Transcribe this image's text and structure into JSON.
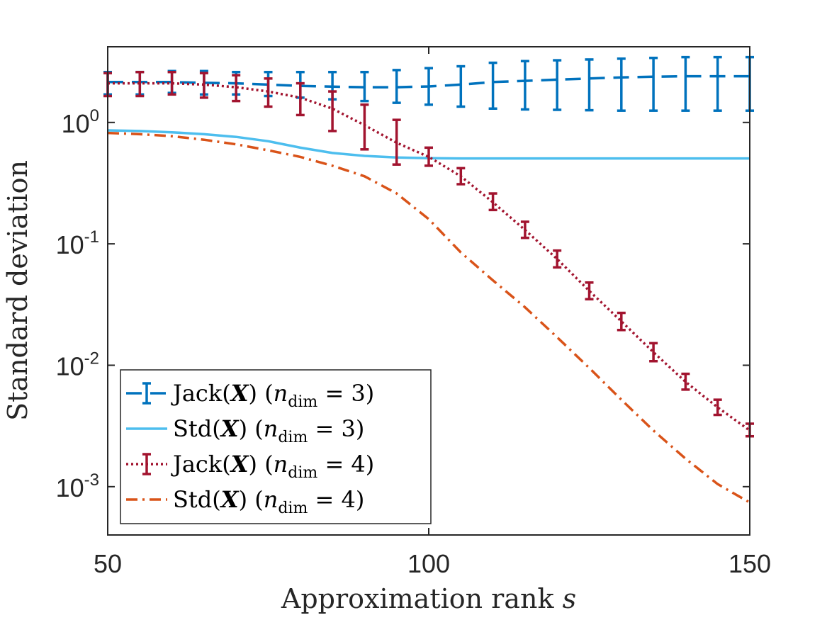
{
  "chart_data": {
    "type": "line",
    "xlabel_main": "Approximation rank ",
    "xlabel_var": "s",
    "ylabel": "Standard deviation",
    "yscale": "log",
    "xlim": [
      50,
      150
    ],
    "ylim": [
      0.0004,
      4.2
    ],
    "xticks": [
      50,
      100,
      150
    ],
    "xtick_labels": [
      "50",
      "100",
      "150"
    ],
    "yticks": [
      1,
      0.1,
      0.01,
      0.001
    ],
    "ytick_base": [
      "10",
      "10",
      "10",
      "10"
    ],
    "ytick_exp": [
      "0",
      "-1",
      "-2",
      "-3"
    ],
    "legend_location": "lower-left",
    "series": [
      {
        "id": "jack3",
        "name_prefix": "Jack(",
        "name_bold": "X",
        "name_mid": ") (",
        "name_var": "n",
        "name_sub": "dim",
        "name_suffix": " = 3)",
        "color": "#0072BD",
        "style": "dashed",
        "errorbars": true,
        "x": [
          50,
          55,
          60,
          65,
          70,
          75,
          80,
          85,
          90,
          95,
          100,
          105,
          110,
          115,
          120,
          125,
          130,
          135,
          140,
          145,
          150
        ],
        "y": [
          2.15,
          2.15,
          2.15,
          2.12,
          2.1,
          2.05,
          2.0,
          1.97,
          1.95,
          1.95,
          1.98,
          2.05,
          2.15,
          2.2,
          2.25,
          2.3,
          2.35,
          2.38,
          2.4,
          2.4,
          2.4
        ],
        "lower": [
          1.7,
          1.7,
          1.75,
          1.7,
          1.7,
          1.65,
          1.6,
          1.55,
          1.5,
          1.45,
          1.4,
          1.35,
          1.3,
          1.28,
          1.27,
          1.26,
          1.25,
          1.25,
          1.25,
          1.25,
          1.25
        ],
        "upper": [
          2.6,
          2.6,
          2.65,
          2.65,
          2.6,
          2.6,
          2.6,
          2.6,
          2.6,
          2.7,
          2.8,
          2.9,
          3.1,
          3.2,
          3.25,
          3.3,
          3.35,
          3.4,
          3.45,
          3.45,
          3.45
        ]
      },
      {
        "id": "std3",
        "name_prefix": "Std(",
        "name_bold": "X",
        "name_mid": ") (",
        "name_var": "n",
        "name_sub": "dim",
        "name_suffix": " = 3)",
        "color": "#4DBEEE",
        "style": "solid",
        "errorbars": false,
        "x": [
          50,
          55,
          60,
          65,
          70,
          75,
          80,
          85,
          90,
          95,
          100,
          105,
          110,
          115,
          120,
          125,
          130,
          135,
          140,
          145,
          150
        ],
        "y": [
          0.86,
          0.85,
          0.83,
          0.8,
          0.76,
          0.7,
          0.62,
          0.56,
          0.53,
          0.515,
          0.508,
          0.505,
          0.505,
          0.505,
          0.505,
          0.505,
          0.505,
          0.505,
          0.505,
          0.505,
          0.505
        ]
      },
      {
        "id": "jack4",
        "name_prefix": "Jack(",
        "name_bold": "X",
        "name_mid": ") (",
        "name_var": "n",
        "name_sub": "dim",
        "name_suffix": " = 4)",
        "color": "#A2142F",
        "style": "dotted",
        "errorbars": true,
        "x": [
          50,
          55,
          60,
          65,
          70,
          75,
          80,
          85,
          90,
          95,
          100,
          105,
          110,
          115,
          120,
          125,
          130,
          135,
          140,
          145,
          150
        ],
        "y": [
          2.1,
          2.1,
          2.1,
          2.05,
          1.95,
          1.8,
          1.6,
          1.3,
          0.95,
          0.68,
          0.52,
          0.36,
          0.22,
          0.13,
          0.075,
          0.041,
          0.023,
          0.0128,
          0.0073,
          0.0045,
          0.0029
        ],
        "lower": [
          1.65,
          1.65,
          1.7,
          1.6,
          1.5,
          1.35,
          1.15,
          0.85,
          0.6,
          0.45,
          0.44,
          0.31,
          0.19,
          0.112,
          0.064,
          0.035,
          0.0195,
          0.0108,
          0.0063,
          0.0039,
          0.0026
        ],
        "upper": [
          2.55,
          2.6,
          2.6,
          2.55,
          2.45,
          2.3,
          2.1,
          1.8,
          1.4,
          1.05,
          0.62,
          0.42,
          0.26,
          0.152,
          0.088,
          0.048,
          0.027,
          0.0152,
          0.0085,
          0.0052,
          0.0033
        ]
      },
      {
        "id": "std4",
        "name_prefix": "Std(",
        "name_bold": "X",
        "name_mid": ") (",
        "name_var": "n",
        "name_sub": "dim",
        "name_suffix": " = 4)",
        "color": "#D95319",
        "style": "dashdot",
        "errorbars": false,
        "x": [
          50,
          55,
          60,
          65,
          70,
          75,
          80,
          85,
          90,
          95,
          100,
          105,
          110,
          115,
          120,
          125,
          130,
          135,
          140,
          145,
          150
        ],
        "y": [
          0.82,
          0.8,
          0.77,
          0.72,
          0.66,
          0.59,
          0.52,
          0.44,
          0.36,
          0.26,
          0.16,
          0.085,
          0.05,
          0.03,
          0.017,
          0.0095,
          0.0052,
          0.0029,
          0.0017,
          0.00105,
          0.00074
        ]
      }
    ]
  }
}
